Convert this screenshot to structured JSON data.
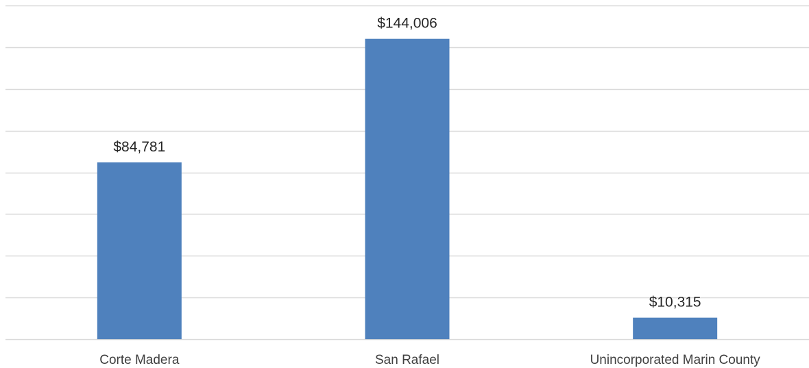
{
  "chart_data": {
    "type": "bar",
    "categories": [
      "Corte Madera",
      "San Rafael",
      "Unincorporated Marin County"
    ],
    "values": [
      84781,
      144006,
      10315
    ],
    "data_labels": [
      "$84,781",
      "$144,006",
      "$10,315"
    ],
    "title": "",
    "xlabel": "",
    "ylabel": "",
    "ylim": [
      0,
      160000
    ],
    "grid": true,
    "legend": "none",
    "colors": {
      "bar": "#4f81bd",
      "grid": "#d9d9d9"
    }
  }
}
